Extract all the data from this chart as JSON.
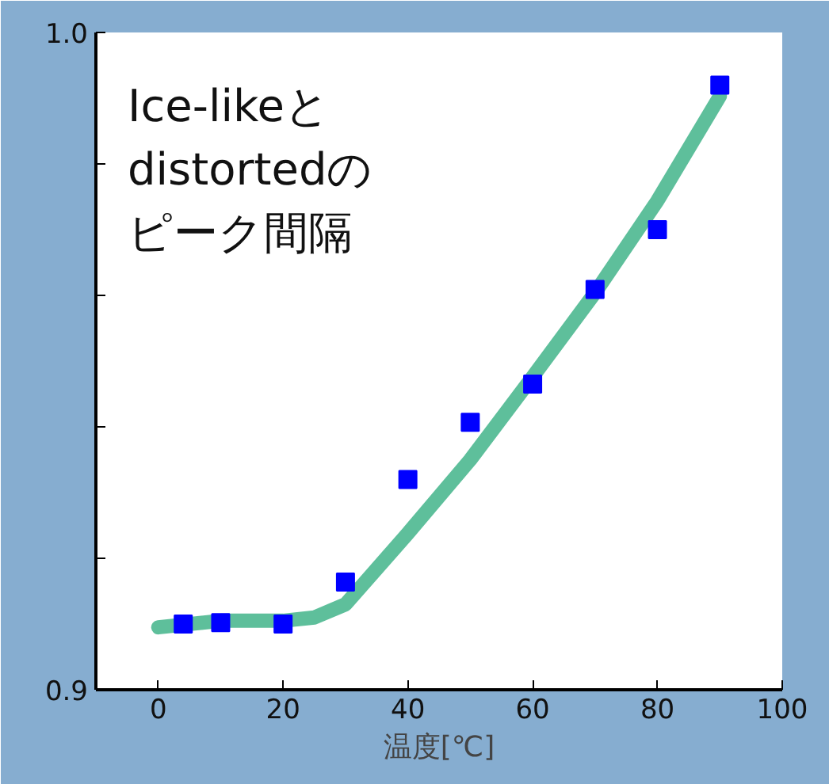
{
  "chart_data": {
    "type": "scatter",
    "xlabel": "温度[℃]",
    "annotations": [
      "Ice-likeと",
      "distortedの",
      "ピーク間隔"
    ],
    "x": [
      4,
      10,
      20,
      30,
      40,
      50,
      60,
      70,
      80,
      90
    ],
    "series": [
      {
        "color": "#0000ff",
        "marker": "square",
        "values": [
          0.91,
          0.9102,
          0.91,
          0.9164,
          0.932,
          0.9407,
          0.9465,
          0.9609,
          0.97,
          0.992
        ]
      },
      {
        "type": "line",
        "color": "#4cb890",
        "x": [
          0,
          10,
          20,
          25,
          30,
          40,
          50,
          60,
          70,
          80,
          90
        ],
        "values": [
          0.9095,
          0.9105,
          0.9105,
          0.911,
          0.913,
          0.9238,
          0.935,
          0.9476,
          0.9604,
          0.9744,
          0.9903
        ]
      }
    ],
    "xlim": [
      -10,
      100
    ],
    "ylim": [
      0.9,
      1.0
    ],
    "xticks": [
      0,
      20,
      40,
      60,
      80,
      100
    ],
    "yticks": [
      {
        "value": 0.9,
        "label": "0.9"
      },
      {
        "value": 0.92,
        "label": null
      },
      {
        "value": 0.94,
        "label": null
      },
      {
        "value": 0.96,
        "label": null
      },
      {
        "value": 0.98,
        "label": null
      },
      {
        "value": 1.0,
        "label": "1.0"
      }
    ],
    "grid": false
  }
}
